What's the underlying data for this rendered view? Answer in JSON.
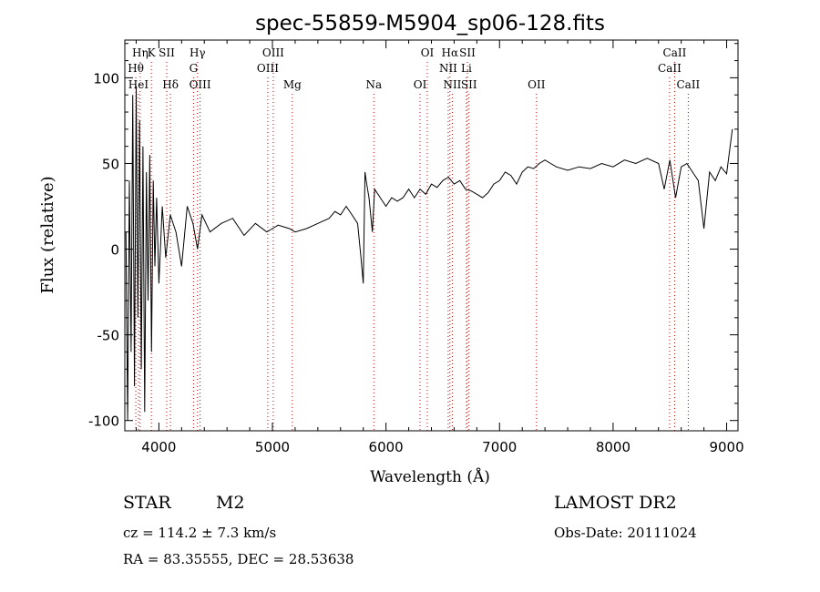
{
  "chart_data": {
    "type": "line",
    "title": "spec-55859-M5904_sp06-128.fits",
    "xlabel": "Wavelength (Å)",
    "ylabel": "Flux (relative)",
    "xlim": [
      3700,
      9100
    ],
    "ylim": [
      -106,
      122
    ],
    "xticks": [
      4000,
      5000,
      6000,
      7000,
      8000,
      9000
    ],
    "yticks": [
      -100,
      -50,
      0,
      50,
      100
    ],
    "grid": false,
    "line_color": "#000000",
    "line_marker_color": "#cc0000",
    "series": [
      {
        "x": [
          3710,
          3725,
          3740,
          3755,
          3770,
          3785,
          3800,
          3815,
          3830,
          3845,
          3860,
          3875,
          3890,
          3905,
          3920,
          3935,
          3950,
          3965,
          3980,
          4000,
          4030,
          4060,
          4100,
          4150,
          4200,
          4250,
          4300,
          4340,
          4380,
          4450,
          4550,
          4650,
          4750,
          4850,
          4950,
          5000,
          5050,
          5100,
          5150,
          5200,
          5300,
          5400,
          5500,
          5550,
          5600,
          5650,
          5700,
          5750,
          5780,
          5800,
          5815,
          5830,
          5850,
          5880,
          5900,
          5950,
          6000,
          6050,
          6100,
          6150,
          6200,
          6250,
          6300,
          6350,
          6400,
          6450,
          6500,
          6550,
          6600,
          6650,
          6700,
          6750,
          6800,
          6850,
          6900,
          6950,
          7000,
          7050,
          7100,
          7150,
          7200,
          7250,
          7300,
          7350,
          7400,
          7450,
          7500,
          7600,
          7700,
          7800,
          7900,
          8000,
          8100,
          8200,
          8300,
          8400,
          8450,
          8500,
          8550,
          8600,
          8650,
          8700,
          8750,
          8800,
          8850,
          8900,
          8950,
          9000,
          9050
        ],
        "values": [
          10,
          -100,
          40,
          -60,
          90,
          -80,
          95,
          -40,
          75,
          -70,
          60,
          -95,
          45,
          -30,
          55,
          -60,
          40,
          -10,
          30,
          -20,
          25,
          -5,
          20,
          10,
          -10,
          25,
          15,
          0,
          20,
          10,
          15,
          18,
          8,
          15,
          10,
          12,
          14,
          13,
          12,
          10,
          12,
          15,
          18,
          22,
          20,
          25,
          20,
          15,
          -5,
          -20,
          45,
          38,
          30,
          10,
          35,
          30,
          25,
          30,
          28,
          30,
          35,
          30,
          35,
          32,
          38,
          36,
          40,
          42,
          38,
          40,
          35,
          34,
          32,
          30,
          33,
          38,
          40,
          45,
          43,
          38,
          45,
          48,
          47,
          50,
          52,
          50,
          48,
          46,
          48,
          47,
          50,
          48,
          52,
          50,
          53,
          50,
          35,
          52,
          30,
          48,
          50,
          45,
          40,
          12,
          45,
          40,
          48,
          44,
          70
        ]
      }
    ],
    "line_groups": [
      {
        "labels": [
          "Hη",
          "Hθ",
          "HeI"
        ],
        "x": [
          3835,
          3797,
          3820
        ]
      },
      {
        "labels": [
          "K"
        ],
        "x": [
          3934
        ]
      },
      {
        "labels": [
          "SII"
        ],
        "x": [
          4069
        ]
      },
      {
        "labels": [
          "Hδ"
        ],
        "x": [
          4102
        ]
      },
      {
        "labels": [
          "Hγ",
          "G",
          "OIII"
        ],
        "x": [
          4340,
          4305,
          4363
        ]
      },
      {
        "labels": [
          "OIII"
        ],
        "x": [
          5007
        ]
      },
      {
        "labels": [
          "OIII"
        ],
        "x": [
          4959
        ]
      },
      {
        "labels": [
          "Mg"
        ],
        "x": [
          5175
        ]
      },
      {
        "labels": [
          "Na"
        ],
        "x": [
          5893
        ]
      },
      {
        "labels": [
          "OI"
        ],
        "x": [
          6300
        ]
      },
      {
        "labels": [
          "OI"
        ],
        "x": [
          6364
        ]
      },
      {
        "labels": [
          "Hα",
          "NII",
          "NII"
        ],
        "x": [
          6563,
          6548,
          6584
        ]
      },
      {
        "labels": [
          "SII",
          "Li",
          "SII"
        ],
        "x": [
          6717,
          6708,
          6731
        ]
      },
      {
        "labels": [
          "OII"
        ],
        "x": [
          7325
        ]
      },
      {
        "labels": [
          "CaII"
        ],
        "x": [
          8542
        ]
      },
      {
        "labels": [
          "CaII"
        ],
        "x": [
          8498
        ]
      },
      {
        "labels": [
          "CaII"
        ],
        "x": [
          8662
        ]
      }
    ]
  },
  "info": {
    "object_class": "STAR",
    "subclass": "M2",
    "survey": "LAMOST DR2",
    "velocity": "cz = 114.2 ± 7.3 km/s",
    "obs_date": "Obs-Date: 20111024",
    "coords": "RA =  83.35555, DEC =  28.53638"
  }
}
